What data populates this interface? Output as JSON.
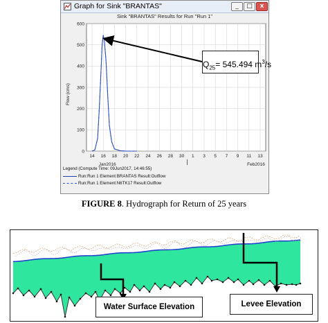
{
  "window": {
    "title": "Graph for Sink \"BRANTAS\"",
    "icon": "chart-app-icon",
    "buttons": {
      "minimize": "_",
      "maximize": "□",
      "close": "x"
    }
  },
  "chart_data": {
    "type": "line",
    "title": "Sink \"BRANTAS\" Results for Run \"Run 1\"",
    "ylabel": "Flow (cms)",
    "xlabel": "",
    "ylim": [
      0,
      600
    ],
    "yticks": [
      0,
      100,
      200,
      300,
      400,
      500,
      600
    ],
    "xticks": [
      "14",
      "16",
      "18",
      "20",
      "22",
      "24",
      "26",
      "28",
      "30",
      "1",
      "3",
      "5",
      "7",
      "9",
      "11",
      "13"
    ],
    "xsublabels": [
      "Jan2016",
      "Feb2016"
    ],
    "grid": true,
    "series": [
      {
        "name": "Run:Run 1 Element:BRANTAS Result:Outflow",
        "color": "#2244aa",
        "x": [
          14,
          14.5,
          15,
          15.3,
          15.6,
          15.8,
          16.0,
          16.2,
          16.5,
          16.8,
          17.1,
          17.5,
          18,
          19,
          20,
          22
        ],
        "y": [
          0,
          5,
          60,
          200,
          380,
          500,
          545.5,
          520,
          420,
          260,
          120,
          45,
          10,
          2,
          0,
          0
        ]
      },
      {
        "name": "Run:Run 1 Element:N6TK17 Result:Outflow",
        "color": "#3355cc",
        "x": [
          14,
          14.5,
          15,
          15.3,
          15.6,
          15.8,
          16.0,
          16.2,
          16.5,
          16.8,
          17.1,
          17.5,
          18,
          19,
          20,
          22
        ],
        "y": [
          0,
          5,
          60,
          200,
          380,
          500,
          545.5,
          520,
          420,
          260,
          120,
          45,
          10,
          2,
          0,
          0
        ]
      }
    ],
    "annotation": {
      "label": "Q",
      "subscript": "25",
      "value": "= 545.494 m",
      "superscript": "3",
      "unit": "/s"
    }
  },
  "legend": {
    "title": "Legend (Compute Time: 09Jun2017, 14:46:55)"
  },
  "caption": {
    "figure_label": "FIGURE 8",
    "text": ".  Hydrograph for Return of 25 years"
  },
  "profile": {
    "fill_color": "#2fe69e",
    "water_line_color": "#2244cc",
    "labels": {
      "water_surface": "Water Surface Elevation",
      "levee": "Levee Elevation"
    }
  }
}
